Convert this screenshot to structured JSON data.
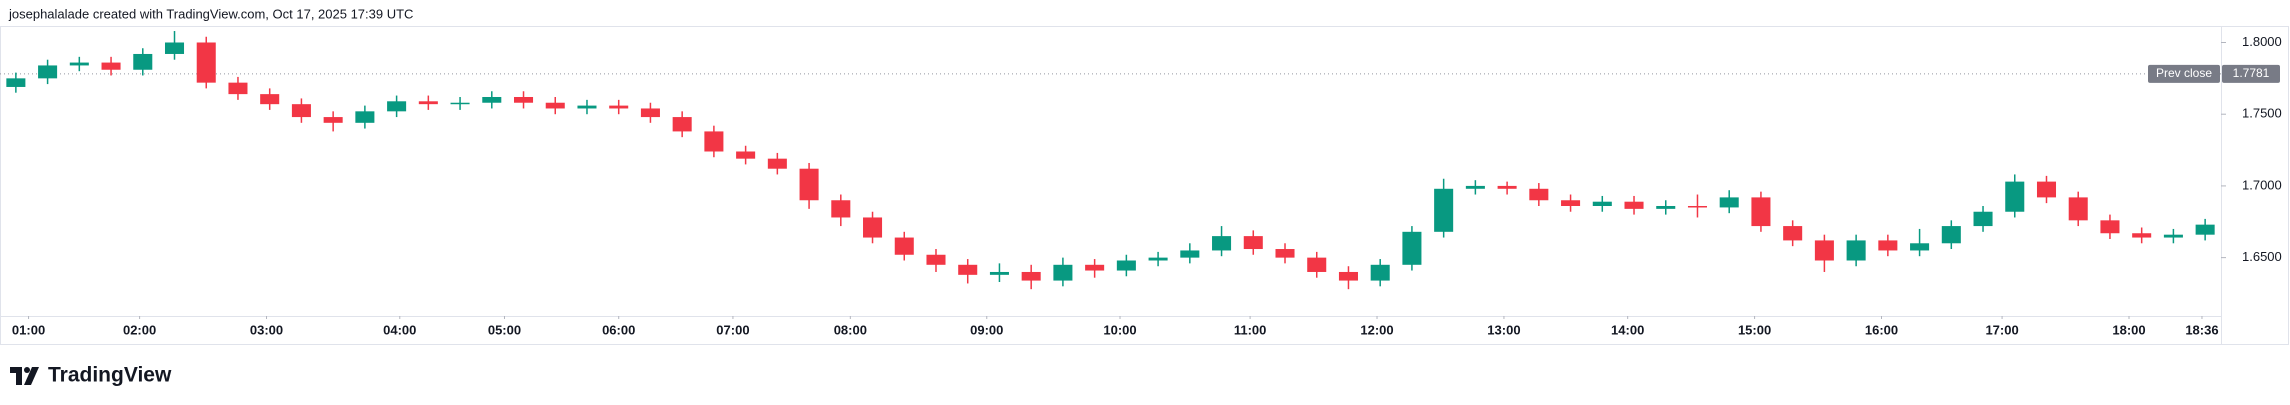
{
  "header": "josephalalade created with TradingView.com, Oct 17, 2025 17:39 UTC",
  "brand": "TradingView",
  "chart_data": {
    "type": "candlestick",
    "up_color": "#089981",
    "down_color": "#f23645",
    "grid": false,
    "xlim": [
      0,
      70
    ],
    "xticks": [
      {
        "value": 0.9,
        "label": "01:00"
      },
      {
        "value": 4.4,
        "label": "02:00"
      },
      {
        "value": 8.4,
        "label": "03:00"
      },
      {
        "value": 12.6,
        "label": "04:00"
      },
      {
        "value": 15.9,
        "label": "05:00"
      },
      {
        "value": 19.5,
        "label": "06:00"
      },
      {
        "value": 23.1,
        "label": "07:00"
      },
      {
        "value": 26.8,
        "label": "08:00"
      },
      {
        "value": 31.1,
        "label": "09:00"
      },
      {
        "value": 35.3,
        "label": "10:00"
      },
      {
        "value": 39.4,
        "label": "11:00"
      },
      {
        "value": 43.4,
        "label": "12:00"
      },
      {
        "value": 47.4,
        "label": "13:00"
      },
      {
        "value": 51.3,
        "label": "14:00"
      },
      {
        "value": 55.3,
        "label": "15:00"
      },
      {
        "value": 59.3,
        "label": "16:00"
      },
      {
        "value": 63.1,
        "label": "17:00"
      },
      {
        "value": 67.1,
        "label": "18:00"
      },
      {
        "value": 69.4,
        "label": "18:36"
      }
    ],
    "ylim": [
      1.6093,
      1.8115
    ],
    "yticks": [
      {
        "value": 1.65,
        "label": "1.6500"
      },
      {
        "value": 1.7,
        "label": "1.7000"
      },
      {
        "value": 1.75,
        "label": "1.7500"
      },
      {
        "value": 1.8,
        "label": "1.8000"
      }
    ],
    "prev_close": {
      "label": "Prev close",
      "value": 1.7781
    },
    "open": [
      1.769,
      1.775,
      1.784,
      1.786,
      1.781,
      1.792,
      1.8,
      1.772,
      1.764,
      1.757,
      1.748,
      1.744,
      1.752,
      1.759,
      1.757,
      1.758,
      1.762,
      1.758,
      1.754,
      1.756,
      1.754,
      1.748,
      1.738,
      1.724,
      1.719,
      1.712,
      1.69,
      1.678,
      1.664,
      1.652,
      1.645,
      1.638,
      1.64,
      1.634,
      1.645,
      1.641,
      1.648,
      1.65,
      1.655,
      1.665,
      1.656,
      1.65,
      1.64,
      1.634,
      1.645,
      1.668,
      1.698,
      1.7,
      1.698,
      1.69,
      1.686,
      1.689,
      1.684,
      1.686,
      1.685,
      1.692,
      1.672,
      1.662,
      1.648,
      1.662,
      1.655,
      1.66,
      1.672,
      1.682,
      1.703,
      1.692,
      1.676,
      1.667,
      1.664,
      1.666
    ],
    "high": [
      1.779,
      1.788,
      1.79,
      1.79,
      1.796,
      1.808,
      1.804,
      1.776,
      1.768,
      1.761,
      1.752,
      1.756,
      1.763,
      1.763,
      1.762,
      1.766,
      1.766,
      1.762,
      1.76,
      1.76,
      1.758,
      1.752,
      1.742,
      1.728,
      1.723,
      1.716,
      1.694,
      1.682,
      1.668,
      1.656,
      1.649,
      1.646,
      1.645,
      1.65,
      1.649,
      1.652,
      1.654,
      1.66,
      1.672,
      1.669,
      1.66,
      1.654,
      1.644,
      1.649,
      1.672,
      1.705,
      1.704,
      1.703,
      1.702,
      1.694,
      1.693,
      1.693,
      1.69,
      1.694,
      1.697,
      1.696,
      1.676,
      1.666,
      1.666,
      1.666,
      1.67,
      1.676,
      1.686,
      1.708,
      1.707,
      1.696,
      1.68,
      1.671,
      1.67,
      1.677
    ],
    "low": [
      1.765,
      1.771,
      1.78,
      1.777,
      1.777,
      1.788,
      1.768,
      1.76,
      1.753,
      1.744,
      1.738,
      1.74,
      1.748,
      1.753,
      1.753,
      1.754,
      1.754,
      1.75,
      1.75,
      1.75,
      1.744,
      1.734,
      1.72,
      1.715,
      1.708,
      1.684,
      1.672,
      1.66,
      1.648,
      1.64,
      1.632,
      1.633,
      1.628,
      1.63,
      1.636,
      1.637,
      1.644,
      1.646,
      1.651,
      1.652,
      1.646,
      1.636,
      1.628,
      1.63,
      1.641,
      1.664,
      1.694,
      1.694,
      1.686,
      1.682,
      1.682,
      1.68,
      1.68,
      1.678,
      1.681,
      1.668,
      1.658,
      1.64,
      1.644,
      1.651,
      1.651,
      1.656,
      1.668,
      1.678,
      1.688,
      1.672,
      1.663,
      1.66,
      1.66,
      1.662
    ],
    "close": [
      1.775,
      1.784,
      1.786,
      1.781,
      1.792,
      1.8,
      1.772,
      1.764,
      1.757,
      1.748,
      1.744,
      1.752,
      1.759,
      1.757,
      1.758,
      1.762,
      1.758,
      1.754,
      1.756,
      1.754,
      1.748,
      1.738,
      1.724,
      1.719,
      1.712,
      1.69,
      1.678,
      1.664,
      1.652,
      1.645,
      1.638,
      1.64,
      1.634,
      1.645,
      1.641,
      1.648,
      1.65,
      1.655,
      1.665,
      1.656,
      1.65,
      1.64,
      1.634,
      1.645,
      1.668,
      1.698,
      1.7,
      1.698,
      1.69,
      1.686,
      1.689,
      1.684,
      1.686,
      1.685,
      1.692,
      1.672,
      1.662,
      1.648,
      1.662,
      1.655,
      1.66,
      1.672,
      1.682,
      1.703,
      1.692,
      1.676,
      1.667,
      1.664,
      1.666,
      1.673
    ]
  }
}
